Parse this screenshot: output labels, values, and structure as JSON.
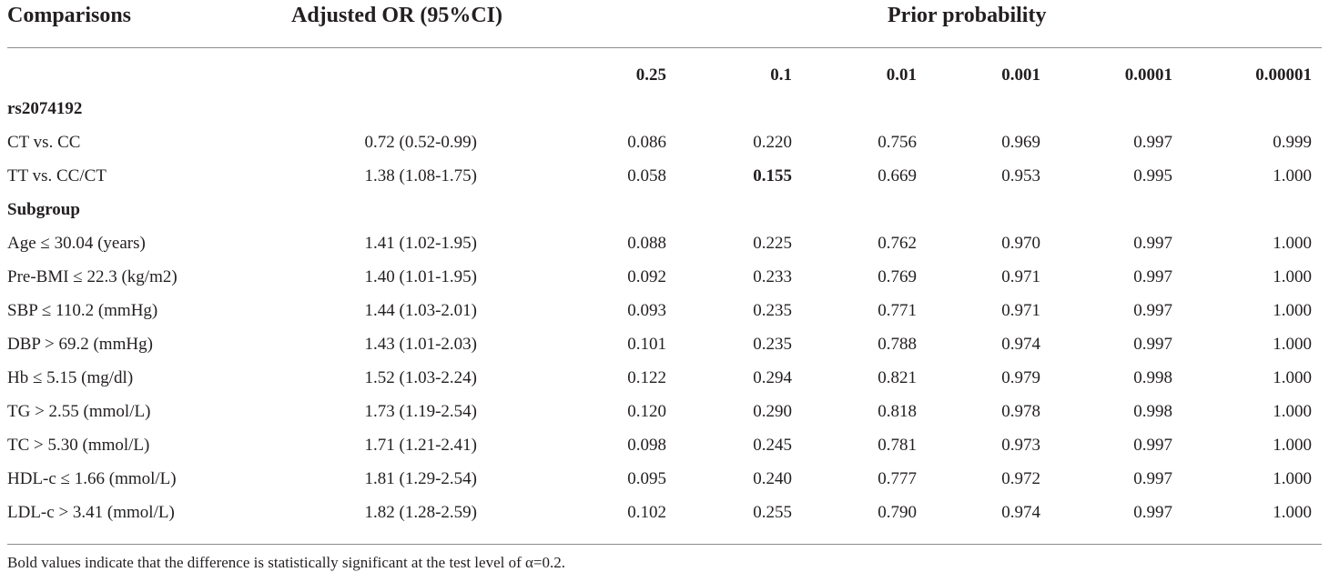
{
  "header": {
    "col_comparisons": "Comparisons",
    "col_or": "Adjusted OR (95%CI)",
    "col_prior": "Prior probability",
    "prior_values": [
      "0.25",
      "0.1",
      "0.01",
      "0.001",
      "0.0001",
      "0.00001"
    ]
  },
  "sections": [
    {
      "title": "rs2074192",
      "rows": [
        {
          "label": "CT vs. CC",
          "or": "0.72 (0.52-0.99)",
          "values": [
            "0.086",
            "0.220",
            "0.756",
            "0.969",
            "0.997",
            "0.999"
          ]
        },
        {
          "label": "TT vs. CC/CT",
          "or": "1.38 (1.08-1.75)",
          "values": [
            "0.058",
            "0.155",
            "0.669",
            "0.953",
            "0.995",
            "1.000"
          ]
        }
      ]
    },
    {
      "title": "Subgroup",
      "rows": [
        {
          "label": "Age ≤ 30.04 (years)",
          "or": "1.41 (1.02-1.95)",
          "values": [
            "0.088",
            "0.225",
            "0.762",
            "0.970",
            "0.997",
            "1.000"
          ]
        },
        {
          "label": "Pre-BMI ≤ 22.3 (kg/m2)",
          "or": "1.40 (1.01-1.95)",
          "values": [
            "0.092",
            "0.233",
            "0.769",
            "0.971",
            "0.997",
            "1.000"
          ]
        },
        {
          "label": "SBP ≤ 110.2 (mmHg)",
          "or": "1.44 (1.03-2.01)",
          "values": [
            "0.093",
            "0.235",
            "0.771",
            "0.971",
            "0.997",
            "1.000"
          ]
        },
        {
          "label": "DBP > 69.2 (mmHg)",
          "or": "1.43 (1.01-2.03)",
          "values": [
            "0.101",
            "0.235",
            "0.788",
            "0.974",
            "0.997",
            "1.000"
          ]
        },
        {
          "label": "Hb ≤ 5.15 (mg/dl)",
          "or": "1.52 (1.03-2.24)",
          "values": [
            "0.122",
            "0.294",
            "0.821",
            "0.979",
            "0.998",
            "1.000"
          ]
        },
        {
          "label": "TG > 2.55 (mmol/L)",
          "or": "1.73 (1.19-2.54)",
          "values": [
            "0.120",
            "0.290",
            "0.818",
            "0.978",
            "0.998",
            "1.000"
          ]
        },
        {
          "label": "TC > 5.30 (mmol/L)",
          "or": "1.71 (1.21-2.41)",
          "values": [
            "0.098",
            "0.245",
            "0.781",
            "0.973",
            "0.997",
            "1.000"
          ]
        },
        {
          "label": "HDL-c ≤ 1.66 (mmol/L)",
          "or": "1.81 (1.29-2.54)",
          "values": [
            "0.095",
            "0.240",
            "0.777",
            "0.972",
            "0.997",
            "1.000"
          ]
        },
        {
          "label": "LDL-c > 3.41 (mmol/L)",
          "or": "1.82 (1.28-2.59)",
          "values": [
            "0.102",
            "0.255",
            "0.790",
            "0.974",
            "0.997",
            "1.000"
          ]
        }
      ]
    }
  ],
  "footnote": "Bold values indicate that the difference is statistically significant at the test level of α=0.2."
}
